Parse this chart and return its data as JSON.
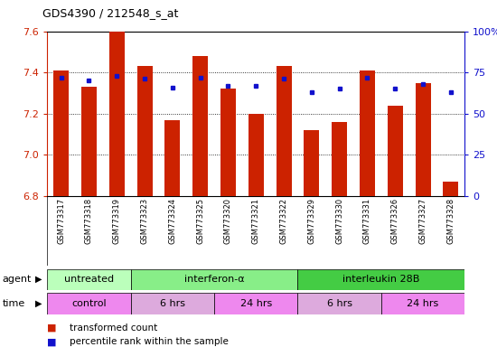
{
  "title": "GDS4390 / 212548_s_at",
  "samples": [
    "GSM773317",
    "GSM773318",
    "GSM773319",
    "GSM773323",
    "GSM773324",
    "GSM773325",
    "GSM773320",
    "GSM773321",
    "GSM773322",
    "GSM773329",
    "GSM773330",
    "GSM773331",
    "GSM773326",
    "GSM773327",
    "GSM773328"
  ],
  "bar_values": [
    7.41,
    7.33,
    7.6,
    7.43,
    7.17,
    7.48,
    7.32,
    7.2,
    7.43,
    7.12,
    7.16,
    7.41,
    7.24,
    7.35,
    6.87
  ],
  "dot_values": [
    72,
    70,
    73,
    71,
    66,
    72,
    67,
    67,
    71,
    63,
    65,
    72,
    65,
    68,
    63
  ],
  "bar_color": "#cc2200",
  "dot_color": "#1111cc",
  "ylim_left": [
    6.8,
    7.6
  ],
  "ylim_right": [
    0,
    100
  ],
  "yticks_left": [
    6.8,
    7.0,
    7.2,
    7.4,
    7.6
  ],
  "yticks_right": [
    0,
    25,
    50,
    75,
    100
  ],
  "ytick_labels_right": [
    "0",
    "25",
    "50",
    "75",
    "100%"
  ],
  "agent_groups": [
    {
      "label": "untreated",
      "start": 0,
      "end": 3,
      "color": "#bbffbb"
    },
    {
      "label": "interferon-α",
      "start": 3,
      "end": 9,
      "color": "#88ee88"
    },
    {
      "label": "interleukin 28B",
      "start": 9,
      "end": 15,
      "color": "#44cc44"
    }
  ],
  "time_groups": [
    {
      "label": "control",
      "start": 0,
      "end": 3,
      "color": "#ee88ee"
    },
    {
      "label": "6 hrs",
      "start": 3,
      "end": 6,
      "color": "#ddaadd"
    },
    {
      "label": "24 hrs",
      "start": 6,
      "end": 9,
      "color": "#ee88ee"
    },
    {
      "label": "6 hrs",
      "start": 9,
      "end": 12,
      "color": "#ddaadd"
    },
    {
      "label": "24 hrs",
      "start": 12,
      "end": 15,
      "color": "#ee88ee"
    }
  ],
  "legend_items": [
    {
      "color": "#cc2200",
      "label": "transformed count"
    },
    {
      "color": "#1111cc",
      "label": "percentile rank within the sample"
    }
  ],
  "bar_width": 0.55,
  "background_color": "#ffffff",
  "plot_bg": "#ffffff",
  "axis_label_color_left": "#cc2200",
  "axis_label_color_right": "#1111cc",
  "xtick_bg": "#dddddd",
  "n": 15,
  "fig_width": 5.5,
  "fig_height": 3.84,
  "dpi": 100
}
